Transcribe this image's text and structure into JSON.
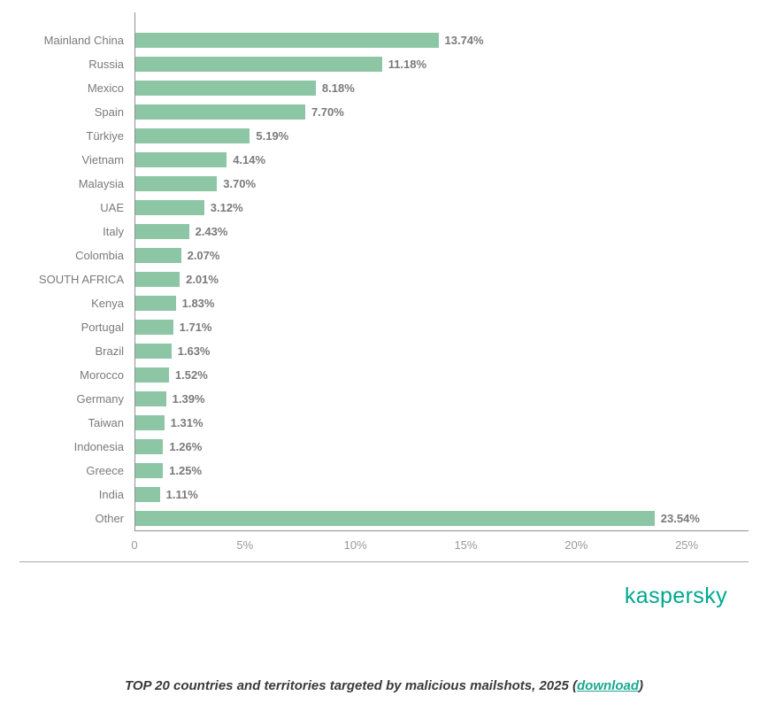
{
  "chart_data": {
    "type": "bar",
    "orientation": "horizontal",
    "title": "TOP 20 countries and territories targeted by malicious mailshots, 2025",
    "categories": [
      "Mainland China",
      "Russia",
      "Mexico",
      "Spain",
      "Türkiye",
      "Vietnam",
      "Malaysia",
      "UAE",
      "Italy",
      "Colombia",
      "SOUTH AFRICA",
      "Kenya",
      "Portugal",
      "Brazil",
      "Morocco",
      "Germany",
      "Taiwan",
      "Indonesia",
      "Greece",
      "India",
      "Other"
    ],
    "values": [
      13.74,
      11.18,
      8.18,
      7.7,
      5.19,
      4.14,
      3.7,
      3.12,
      2.43,
      2.07,
      2.01,
      1.83,
      1.71,
      1.63,
      1.52,
      1.39,
      1.31,
      1.26,
      1.25,
      1.11,
      23.54
    ],
    "value_labels": [
      "13.74%",
      "11.18%",
      "8.18%",
      "7.70%",
      "5.19%",
      "4.14%",
      "3.70%",
      "3.12%",
      "2.43%",
      "2.07%",
      "2.01%",
      "1.83%",
      "1.71%",
      "1.63%",
      "1.52%",
      "1.39%",
      "1.31%",
      "1.26%",
      "1.25%",
      "1.11%",
      "23.54%"
    ],
    "x_ticks": [
      "0",
      "5%",
      "10%",
      "15%",
      "20%",
      "25%"
    ],
    "x_tick_values": [
      0,
      5,
      10,
      15,
      20,
      25
    ],
    "x_max": 27.8,
    "bar_color": "#8cc6a5",
    "grid": false,
    "legend": false
  },
  "branding": {
    "logo_text": "kaspersky",
    "logo_color": "#00a88e"
  },
  "caption": {
    "text_before": "TOP 20 countries and territories targeted by malicious mailshots, 2025 (",
    "link_text": "download",
    "text_after": ")"
  }
}
